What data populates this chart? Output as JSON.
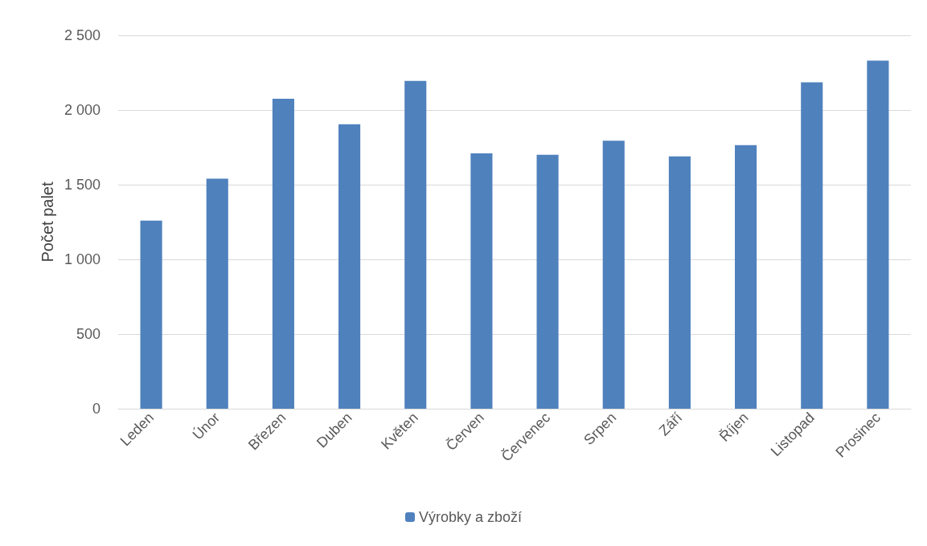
{
  "chart_data": {
    "type": "bar",
    "ylabel": "Počet palet",
    "categories": [
      "Leden",
      "Únor",
      "Březen",
      "Duben",
      "Květen",
      "Červen",
      "Červenec",
      "Srpen",
      "Září",
      "Říjen",
      "Listopad",
      "Prosinec"
    ],
    "series": [
      {
        "name": "Výrobky a zboží",
        "color": "#4f81bd",
        "values": [
          1260,
          1540,
          2075,
          1905,
          2195,
          1710,
          1700,
          1795,
          1690,
          1765,
          2185,
          2330
        ]
      }
    ],
    "ylim": [
      0,
      2500
    ],
    "yticks": [
      0,
      500,
      {
        "value": 1000,
        "label": "1 000"
      },
      {
        "value": 1500,
        "label": "1 500"
      },
      {
        "value": 2000,
        "label": "2 000"
      },
      {
        "value": 2500,
        "label": "2 500"
      }
    ],
    "grid": "y",
    "legend": "bottom"
  }
}
